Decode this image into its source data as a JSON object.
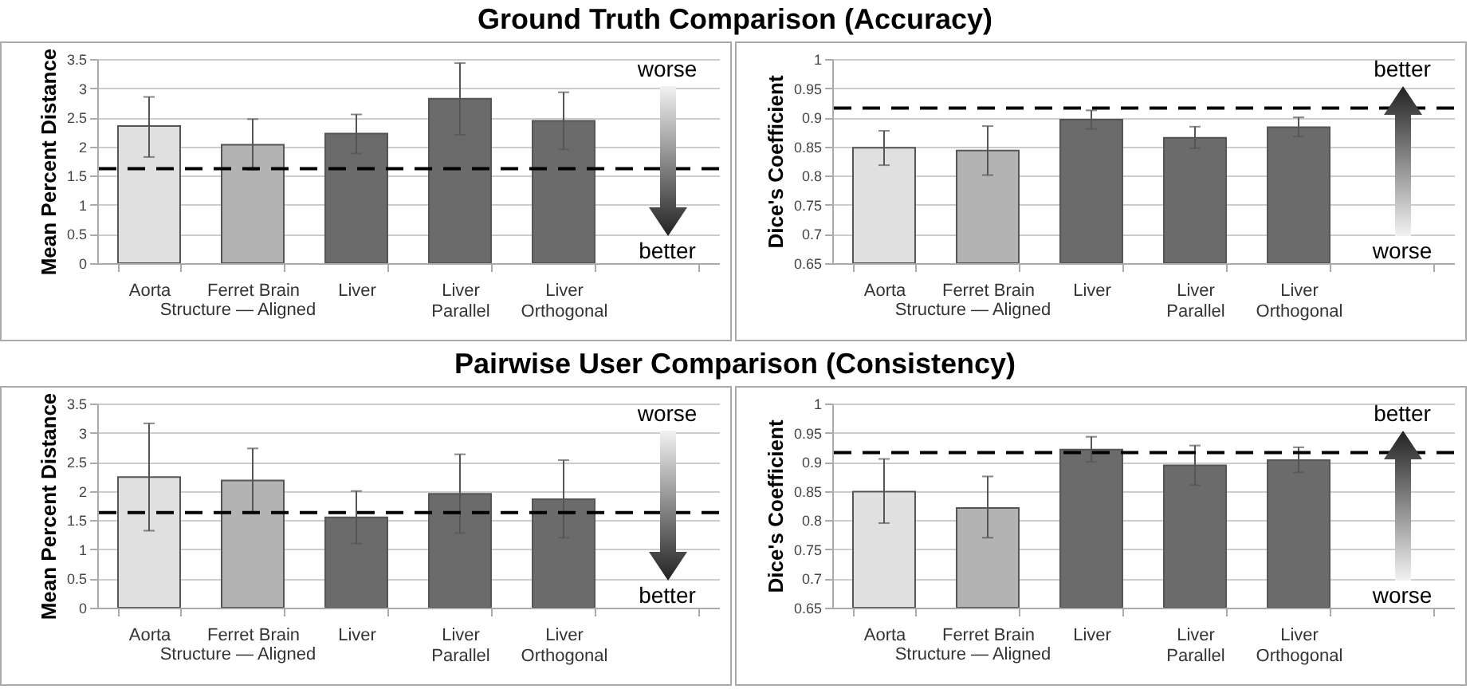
{
  "chart_data": [
    {
      "type": "bar",
      "title": "Ground Truth Comparison (Accuracy)",
      "xlabel": "Structure — Aligned",
      "ylabel": "Mean Percent Distance",
      "categories": [
        "Aorta",
        "Ferret Brain",
        "Liver",
        "Liver Parallel",
        "Liver Orthogonal",
        null
      ],
      "values": [
        2.35,
        2.03,
        2.22,
        2.82,
        2.44,
        null
      ],
      "errors": [
        [
          1.82,
          2.85
        ],
        [
          1.6,
          2.47
        ],
        [
          1.88,
          2.55
        ],
        [
          2.2,
          3.43
        ],
        [
          1.95,
          2.93
        ],
        null
      ],
      "colors": [
        "#e0e0e0",
        "#b3b3b3",
        "#6b6b6b",
        "#6b6b6b",
        "#6b6b6b",
        "#6b6b6b"
      ],
      "ylim": [
        0,
        3.5
      ],
      "yticks": [
        0,
        0.5,
        1,
        1.5,
        2,
        2.5,
        3,
        3.5
      ],
      "grid": "y",
      "ref_lines": [
        {
          "axis": "y",
          "value": 1.62,
          "color": "#000000",
          "line_style": "dashed"
        }
      ],
      "annotations": [
        "worse",
        "better"
      ]
    },
    {
      "type": "bar",
      "xlabel": "Structure — Aligned",
      "ylabel": "Dice's Coefficient",
      "categories": [
        "Aorta",
        "Ferret Brain",
        "Liver",
        "Liver Parallel",
        "Liver Orthogonal",
        null
      ],
      "values": [
        0.848,
        0.843,
        0.896,
        0.865,
        0.883,
        null
      ],
      "errors": [
        [
          0.818,
          0.877
        ],
        [
          0.801,
          0.885
        ],
        [
          0.88,
          0.912
        ],
        [
          0.847,
          0.884
        ],
        [
          0.867,
          0.9
        ],
        null
      ],
      "colors": [
        "#e0e0e0",
        "#b3b3b3",
        "#6b6b6b",
        "#6b6b6b",
        "#6b6b6b",
        "#6b6b6b"
      ],
      "ylim": [
        0.65,
        1
      ],
      "yticks": [
        0.65,
        0.7,
        0.75,
        0.8,
        0.85,
        0.9,
        0.95,
        1
      ],
      "grid": "y",
      "ref_lines": [
        {
          "axis": "y",
          "value": 0.916,
          "color": "#000000",
          "line_style": "dashed"
        }
      ],
      "annotations": [
        "better",
        "worse"
      ]
    },
    {
      "type": "bar",
      "title": "Pairwise User Comparison (Consistency)",
      "xlabel": "Structure — Aligned",
      "ylabel": "Mean Percent Distance",
      "categories": [
        "Aorta",
        "Ferret Brain",
        "Liver",
        "Liver Parallel",
        "Liver Orthogonal",
        null
      ],
      "values": [
        2.24,
        2.18,
        1.55,
        1.95,
        1.86,
        null
      ],
      "errors": [
        [
          1.32,
          3.16
        ],
        [
          1.64,
          2.73
        ],
        [
          1.1,
          2.0
        ],
        [
          1.28,
          2.63
        ],
        [
          1.2,
          2.53
        ],
        null
      ],
      "colors": [
        "#e0e0e0",
        "#b3b3b3",
        "#6b6b6b",
        "#6b6b6b",
        "#6b6b6b",
        "#6b6b6b"
      ],
      "ylim": [
        0,
        3.5
      ],
      "yticks": [
        0,
        0.5,
        1,
        1.5,
        2,
        2.5,
        3,
        3.5
      ],
      "grid": "y",
      "ref_lines": [
        {
          "axis": "y",
          "value": 1.63,
          "color": "#000000",
          "line_style": "dashed"
        }
      ],
      "annotations": [
        "worse",
        "better"
      ]
    },
    {
      "type": "bar",
      "xlabel": "Structure — Aligned",
      "ylabel": "Dice's Coefficient",
      "categories": [
        "Aorta",
        "Ferret Brain",
        "Liver",
        "Liver Parallel",
        "Liver Orthogonal",
        null
      ],
      "values": [
        0.849,
        0.821,
        0.921,
        0.894,
        0.903,
        null
      ],
      "errors": [
        [
          0.795,
          0.905
        ],
        [
          0.77,
          0.875
        ],
        [
          0.9,
          0.943
        ],
        [
          0.86,
          0.928
        ],
        [
          0.882,
          0.925
        ],
        null
      ],
      "colors": [
        "#e0e0e0",
        "#b3b3b3",
        "#6b6b6b",
        "#6b6b6b",
        "#6b6b6b",
        "#6b6b6b"
      ],
      "ylim": [
        0.65,
        1
      ],
      "yticks": [
        0.65,
        0.7,
        0.75,
        0.8,
        0.85,
        0.9,
        0.95,
        1
      ],
      "grid": "y",
      "ref_lines": [
        {
          "axis": "y",
          "value": 0.916,
          "color": "#000000",
          "line_style": "dashed"
        }
      ],
      "annotations": [
        "better",
        "worse"
      ]
    }
  ]
}
